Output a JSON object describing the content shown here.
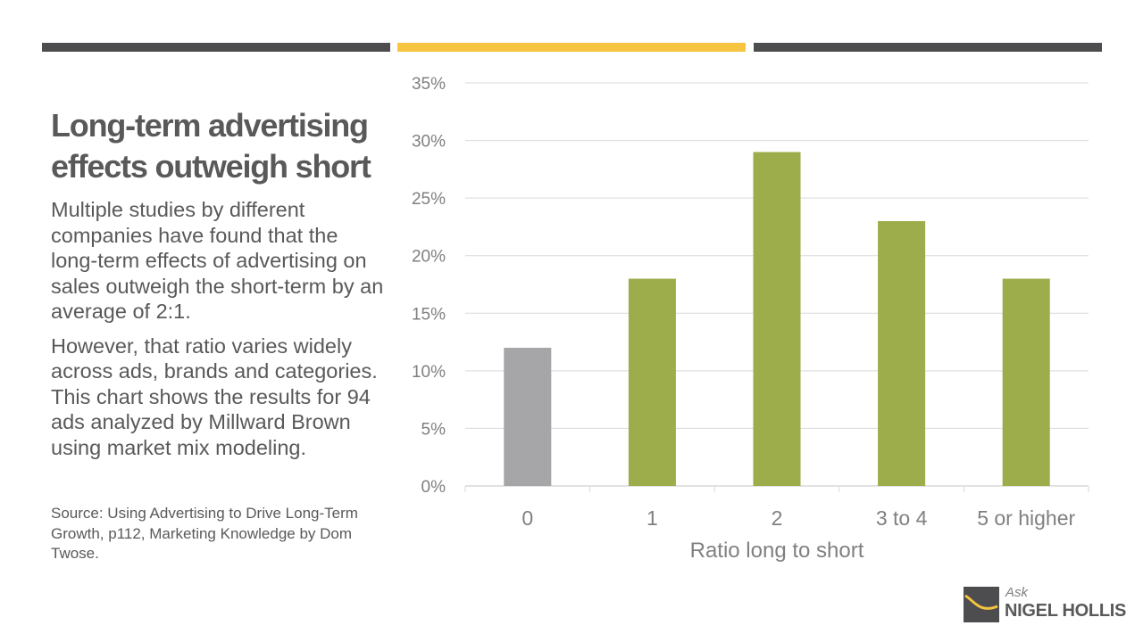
{
  "colors": {
    "dark_bar": "#4d4d4f",
    "accent_bar": "#f6c440",
    "bar_green": "#9ead4b",
    "bar_gray": "#a6a6a9",
    "grid": "#d9d9d9",
    "text": "#595959"
  },
  "slide": {
    "title": "Long-term advertising effects outweigh short",
    "paragraphs": [
      "Multiple studies by different companies have found that the long-term effects of advertising on sales outweigh the short-term by an average of 2:1.",
      "However, that ratio varies widely across ads, brands and categories. This chart shows the results for 94 ads analyzed by Millward Brown using market mix modeling."
    ],
    "source": "Source: Using Advertising to Drive Long-Term Growth, p112, Marketing Knowledge by Dom Twose."
  },
  "logo": {
    "ask": "Ask",
    "name": "NIGEL HOLLIS",
    "icon": "logo-mark-icon"
  },
  "chart_data": {
    "type": "bar",
    "categories": [
      "0",
      "1",
      "2",
      "3 to 4",
      "5 or higher"
    ],
    "values": [
      12,
      18,
      29,
      23,
      18
    ],
    "bar_colors": [
      "#a6a6a9",
      "#9ead4b",
      "#9ead4b",
      "#9ead4b",
      "#9ead4b"
    ],
    "xlabel": "Ratio long to short",
    "ylabel": "",
    "ylim": [
      0,
      35
    ],
    "yticks": [
      0,
      5,
      10,
      15,
      20,
      25,
      30,
      35
    ],
    "ytick_format": "percent",
    "grid": true,
    "legend": "none"
  }
}
